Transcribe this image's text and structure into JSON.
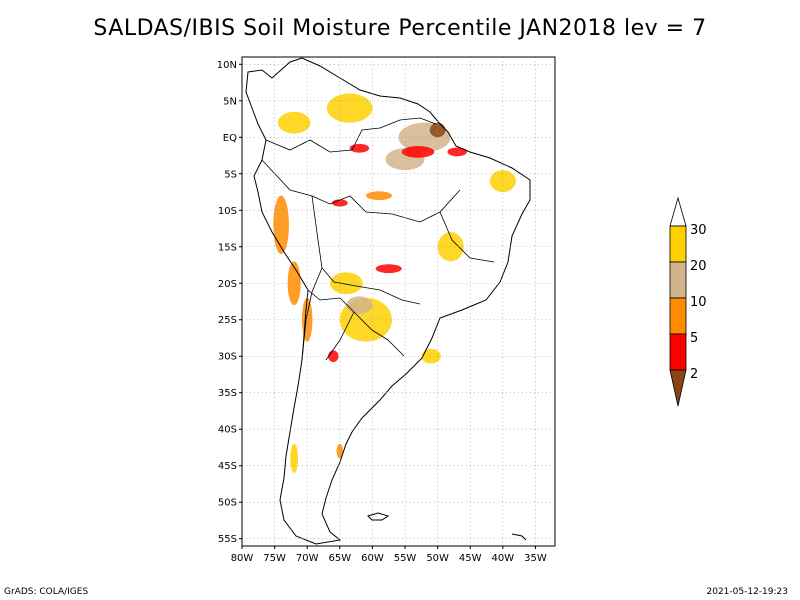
{
  "title": "SALDAS/IBIS Soil Moisture Percentile JAN2018 lev = 7",
  "map": {
    "lon_range": [
      -80,
      -32
    ],
    "lat_range": [
      -56,
      11
    ],
    "lat_ticks": [
      {
        "lat": 10,
        "label": "10N"
      },
      {
        "lat": 5,
        "label": "5N"
      },
      {
        "lat": 0,
        "label": "EQ"
      },
      {
        "lat": -5,
        "label": "5S"
      },
      {
        "lat": -10,
        "label": "10S"
      },
      {
        "lat": -15,
        "label": "15S"
      },
      {
        "lat": -20,
        "label": "20S"
      },
      {
        "lat": -25,
        "label": "25S"
      },
      {
        "lat": -30,
        "label": "30S"
      },
      {
        "lat": -35,
        "label": "35S"
      },
      {
        "lat": -40,
        "label": "40S"
      },
      {
        "lat": -45,
        "label": "45S"
      },
      {
        "lat": -50,
        "label": "50S"
      },
      {
        "lat": -55,
        "label": "55S"
      }
    ],
    "lon_ticks": [
      {
        "lon": -80,
        "label": "80W"
      },
      {
        "lon": -75,
        "label": "75W"
      },
      {
        "lon": -70,
        "label": "70W"
      },
      {
        "lon": -65,
        "label": "65W"
      },
      {
        "lon": -60,
        "label": "60W"
      },
      {
        "lon": -55,
        "label": "55W"
      },
      {
        "lon": -50,
        "label": "50W"
      },
      {
        "lon": -45,
        "label": "45W"
      },
      {
        "lon": -40,
        "label": "40W"
      },
      {
        "lon": -35,
        "label": "35W"
      }
    ],
    "regions": [
      {
        "class": "lt30",
        "lon": -63.5,
        "lat": 4,
        "rx": 3.5,
        "ry": 2
      },
      {
        "class": "lt30",
        "lon": -72,
        "lat": 2,
        "rx": 2.5,
        "ry": 1.5
      },
      {
        "class": "lt20",
        "lon": -52,
        "lat": 0,
        "rx": 4,
        "ry": 2
      },
      {
        "class": "lt20",
        "lon": -55,
        "lat": -3,
        "rx": 3,
        "ry": 1.5
      },
      {
        "class": "lt2",
        "lon": -50,
        "lat": 1,
        "rx": 1.2,
        "ry": 1
      },
      {
        "class": "lt5",
        "lon": -53,
        "lat": -2,
        "rx": 2.5,
        "ry": 0.8
      },
      {
        "class": "lt5",
        "lon": -47,
        "lat": -2,
        "rx": 1.5,
        "ry": 0.6
      },
      {
        "class": "lt5",
        "lon": -62,
        "lat": -1.5,
        "rx": 1.5,
        "ry": 0.6
      },
      {
        "class": "lt10",
        "lon": -74,
        "lat": -12,
        "rx": 1.2,
        "ry": 4
      },
      {
        "class": "lt10",
        "lon": -72,
        "lat": -20,
        "rx": 1,
        "ry": 3
      },
      {
        "class": "lt10",
        "lon": -70,
        "lat": -25,
        "rx": 0.8,
        "ry": 3
      },
      {
        "class": "lt10",
        "lon": -59,
        "lat": -8,
        "rx": 2,
        "ry": 0.6
      },
      {
        "class": "lt5",
        "lon": -65,
        "lat": -9,
        "rx": 1.2,
        "ry": 0.5
      },
      {
        "class": "lt5",
        "lon": -57.5,
        "lat": -18,
        "rx": 2,
        "ry": 0.6
      },
      {
        "class": "lt5",
        "lon": -66,
        "lat": -30,
        "rx": 0.8,
        "ry": 0.8
      },
      {
        "class": "lt30",
        "lon": -61,
        "lat": -25,
        "rx": 4,
        "ry": 3
      },
      {
        "class": "lt30",
        "lon": -64,
        "lat": -20,
        "rx": 2.5,
        "ry": 1.5
      },
      {
        "class": "lt20",
        "lon": -62,
        "lat": -23,
        "rx": 2,
        "ry": 1.2
      },
      {
        "class": "lt30",
        "lon": -48,
        "lat": -15,
        "rx": 2,
        "ry": 2
      },
      {
        "class": "lt30",
        "lon": -40,
        "lat": -6,
        "rx": 2,
        "ry": 1.5
      },
      {
        "class": "lt30",
        "lon": -51,
        "lat": -30,
        "rx": 1.5,
        "ry": 1
      },
      {
        "class": "lt30",
        "lon": -72,
        "lat": -44,
        "rx": 0.6,
        "ry": 2
      },
      {
        "class": "lt10",
        "lon": -65,
        "lat": -43,
        "rx": 0.5,
        "ry": 1
      }
    ]
  },
  "colorbar": {
    "colors": {
      "gt30": "#ffffff",
      "lt30": "#ffd000",
      "lt20": "#d2b48c",
      "lt10": "#ff8c00",
      "lt5": "#ff0000",
      "lt2": "#8b4513"
    },
    "labels": [
      "30",
      "20",
      "10",
      "5",
      "2"
    ]
  },
  "footer": {
    "left": "GrADS: COLA/IGES",
    "right": "2021-05-12-19:23"
  }
}
